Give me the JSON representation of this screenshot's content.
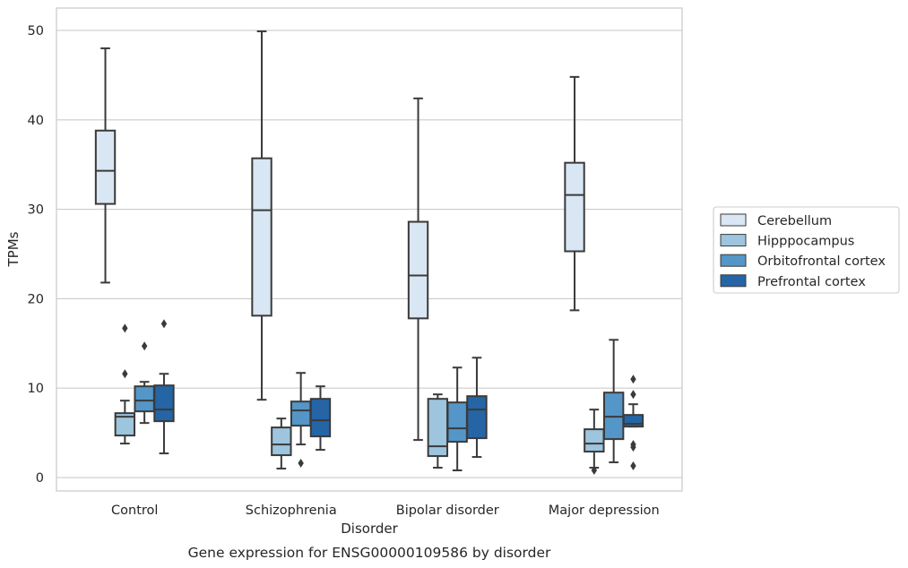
{
  "chart_data": {
    "type": "boxplot",
    "caption": "Gene expression for ENSG00000109586 by disorder",
    "xlabel": "Disorder",
    "ylabel": "TPMs",
    "ylim": [
      -1.5,
      52.5
    ],
    "yticks": [
      0,
      10,
      20,
      30,
      40,
      50
    ],
    "grid": true,
    "legend_position": "right",
    "categories": [
      "Control",
      "Schizophrenia",
      "Bipolar disorder",
      "Major depression"
    ],
    "series": [
      {
        "name": "Cerebellum",
        "color": "#d9e6f3",
        "boxes": [
          {
            "whislo": 21.8,
            "q1": 30.6,
            "med": 34.3,
            "q3": 38.8,
            "whishi": 48.0,
            "fliers": []
          },
          {
            "whislo": 8.7,
            "q1": 18.1,
            "med": 29.9,
            "q3": 35.7,
            "whishi": 49.9,
            "fliers": []
          },
          {
            "whislo": 4.2,
            "q1": 17.8,
            "med": 22.6,
            "q3": 28.6,
            "whishi": 42.4,
            "fliers": []
          },
          {
            "whislo": 18.7,
            "q1": 25.3,
            "med": 31.6,
            "q3": 35.2,
            "whishi": 44.8,
            "fliers": []
          }
        ]
      },
      {
        "name": "Hipppocampus",
        "color": "#9dc5dd",
        "boxes": [
          {
            "whislo": 3.8,
            "q1": 4.7,
            "med": 6.8,
            "q3": 7.2,
            "whishi": 8.6,
            "fliers": [
              16.7,
              11.6
            ]
          },
          {
            "whislo": 1.0,
            "q1": 2.5,
            "med": 3.7,
            "q3": 5.6,
            "whishi": 6.6,
            "fliers": []
          },
          {
            "whislo": 1.1,
            "q1": 2.4,
            "med": 3.5,
            "q3": 8.8,
            "whishi": 9.3,
            "fliers": []
          },
          {
            "whislo": 1.1,
            "q1": 2.9,
            "med": 3.8,
            "q3": 5.4,
            "whishi": 7.6,
            "fliers": [
              0.8
            ]
          }
        ]
      },
      {
        "name": "Orbitofrontal cortex",
        "color": "#5496c7",
        "boxes": [
          {
            "whislo": 6.1,
            "q1": 7.4,
            "med": 8.6,
            "q3": 10.2,
            "whishi": 10.7,
            "fliers": [
              14.7
            ]
          },
          {
            "whislo": 3.7,
            "q1": 5.8,
            "med": 7.5,
            "q3": 8.5,
            "whishi": 11.7,
            "fliers": [
              1.6
            ]
          },
          {
            "whislo": 0.8,
            "q1": 4.0,
            "med": 5.5,
            "q3": 8.4,
            "whishi": 12.3,
            "fliers": []
          },
          {
            "whislo": 1.7,
            "q1": 4.3,
            "med": 6.8,
            "q3": 9.5,
            "whishi": 15.4,
            "fliers": []
          }
        ]
      },
      {
        "name": "Prefrontal cortex",
        "color": "#2565a6",
        "boxes": [
          {
            "whislo": 2.7,
            "q1": 6.3,
            "med": 7.6,
            "q3": 10.3,
            "whishi": 11.6,
            "fliers": [
              17.2
            ]
          },
          {
            "whislo": 3.1,
            "q1": 4.6,
            "med": 6.4,
            "q3": 8.8,
            "whishi": 10.2,
            "fliers": []
          },
          {
            "whislo": 2.3,
            "q1": 4.4,
            "med": 7.6,
            "q3": 9.1,
            "whishi": 13.4,
            "fliers": []
          },
          {
            "whislo": 5.7,
            "q1": 5.7,
            "med": 6.0,
            "q3": 7.0,
            "whishi": 8.2,
            "fliers": [
              11.0,
              9.3,
              3.7,
              3.4,
              1.3
            ]
          }
        ]
      }
    ]
  }
}
